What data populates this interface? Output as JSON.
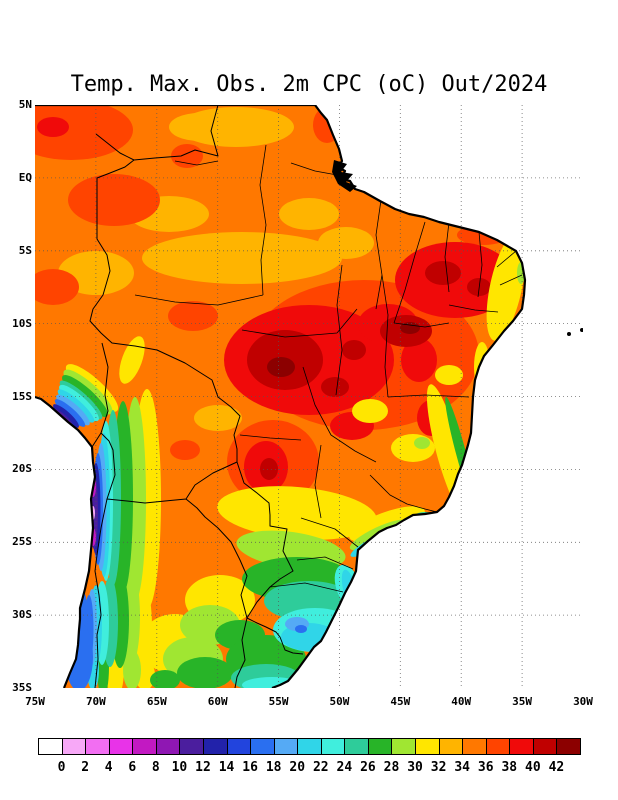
{
  "title": {
    "text": "Temp. Max. Obs. 2m CPC (oC) Out/2024"
  },
  "axes": {
    "lat": [
      "5N",
      "EQ",
      "5S",
      "10S",
      "15S",
      "20S",
      "25S",
      "30S",
      "35S"
    ],
    "lon": [
      "75W",
      "70W",
      "65W",
      "60W",
      "55W",
      "50W",
      "45W",
      "40W",
      "35W",
      "30W"
    ]
  },
  "colorbar": {
    "ticks": [
      0,
      2,
      4,
      6,
      8,
      10,
      12,
      14,
      16,
      18,
      20,
      22,
      24,
      26,
      28,
      30,
      32,
      34,
      36,
      38,
      40,
      42
    ],
    "colors": [
      "#FFFFFF",
      "#F7A8F7",
      "#F26EF2",
      "#E833E8",
      "#C219C2",
      "#8F17B3",
      "#4B1E9E",
      "#2222AA",
      "#2244DD",
      "#2A6FF0",
      "#55AAF5",
      "#30D5E8",
      "#40EEDD",
      "#2ECC9A",
      "#28B428",
      "#A0E632",
      "#FFE600",
      "#FFB400",
      "#FF7800",
      "#FF4400",
      "#F00A0A",
      "#C00000",
      "#8C0000"
    ]
  },
  "chart_data": {
    "type": "heatmap",
    "title": "Temp. Max. Obs. 2m CPC (oC) Out/2024",
    "units": "oC",
    "period": "Out/2024",
    "lat_ticks": [
      "5N",
      "EQ",
      "5S",
      "10S",
      "15S",
      "20S",
      "25S",
      "30S",
      "35S"
    ],
    "lon_ticks": [
      "75W",
      "70W",
      "65W",
      "60W",
      "55W",
      "50W",
      "45W",
      "40W",
      "35W",
      "30W"
    ],
    "colorbar_levels": [
      0,
      2,
      4,
      6,
      8,
      10,
      12,
      14,
      16,
      18,
      20,
      22,
      24,
      26,
      28,
      30,
      32,
      34,
      36,
      38,
      40,
      42
    ],
    "colorbar_colors": [
      "#FFFFFF",
      "#F7A8F7",
      "#F26EF2",
      "#E833E8",
      "#C219C2",
      "#8F17B3",
      "#4B1E9E",
      "#2222AA",
      "#2244DD",
      "#2A6FF0",
      "#55AAF5",
      "#30D5E8",
      "#40EEDD",
      "#2ECC9A",
      "#28B428",
      "#A0E632",
      "#FFE600",
      "#FFB400",
      "#FF7800",
      "#FF4400",
      "#F00A0A",
      "#C00000",
      "#8C0000"
    ],
    "grid_estimate_degC": {
      "note": "approximate values read from the shaded field at 5-degree grid points; null = ocean/outside shaded land",
      "lon_deg_W": [
        75,
        70,
        65,
        60,
        55,
        50,
        45,
        40,
        35,
        30
      ],
      "lat_rows": [
        "5N",
        "EQ",
        "5S",
        "10S",
        "15S",
        "20S",
        "25S",
        "30S",
        "35S"
      ],
      "values": [
        [
          34,
          34,
          33,
          34,
          33,
          31,
          null,
          null,
          null,
          null
        ],
        [
          33,
          35,
          34,
          34,
          33,
          33,
          null,
          null,
          null,
          null
        ],
        [
          34,
          35,
          33,
          34,
          35,
          36,
          37,
          38,
          31,
          null
        ],
        [
          33,
          30,
          34,
          36,
          39,
          38,
          41,
          39,
          33,
          null
        ],
        [
          null,
          14,
          31,
          34,
          40,
          37,
          36,
          34,
          null,
          null
        ],
        [
          null,
          12,
          27,
          34,
          37,
          35,
          33,
          30,
          null,
          null
        ],
        [
          null,
          11,
          23,
          32,
          33,
          31,
          27,
          null,
          null,
          null
        ],
        [
          null,
          16,
          23,
          29,
          26,
          24,
          null,
          null,
          null,
          null
        ],
        [
          null,
          20,
          25,
          26,
          24,
          null,
          null,
          null,
          null,
          null
        ]
      ]
    }
  }
}
